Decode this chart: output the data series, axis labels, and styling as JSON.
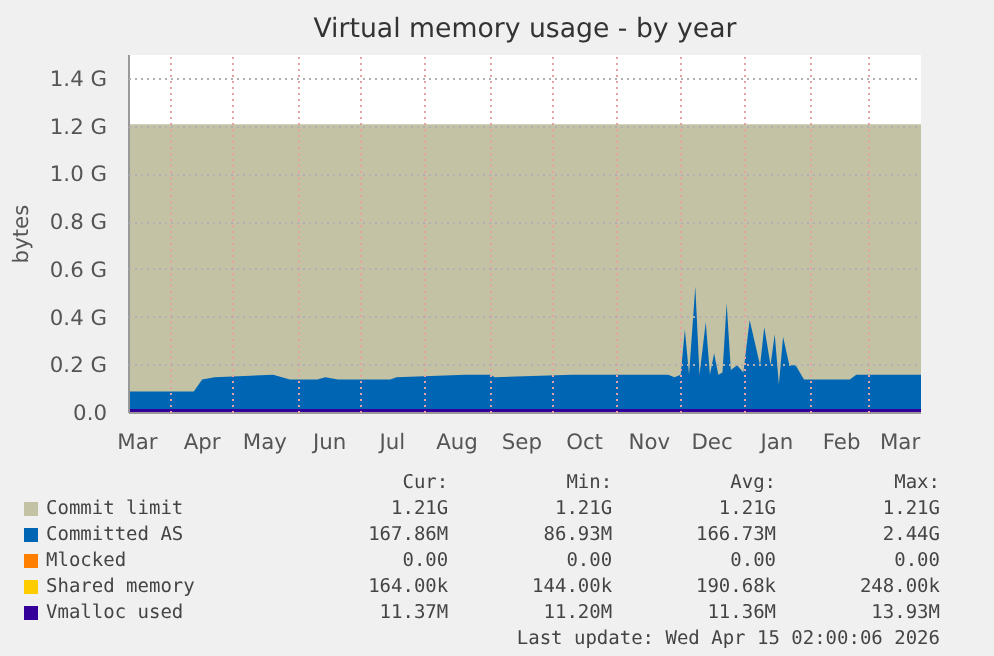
{
  "chart_data": {
    "type": "area",
    "title": "Virtual memory usage - by year",
    "ylabel": "bytes",
    "xlim": [
      "2025-03-12",
      "2026-03-26"
    ],
    "xticks": [
      {
        "value": "2025-04-01",
        "label": null
      },
      {
        "value": "2025-05-01",
        "label": null
      },
      {
        "value": "2025-06-01",
        "label": null
      },
      {
        "value": "2025-07-01",
        "label": null
      },
      {
        "value": "2025-08-01",
        "label": null
      },
      {
        "value": "2025-09-01",
        "label": null
      },
      {
        "value": "2025-10-01",
        "label": null
      },
      {
        "value": "2025-11-01",
        "label": null
      },
      {
        "value": "2025-12-01",
        "label": null
      },
      {
        "value": "2026-01-01",
        "label": null
      },
      {
        "value": "2026-02-01",
        "label": null
      },
      {
        "value": "2026-03-01",
        "label": null
      },
      {
        "value": "2025-03-16",
        "label": "Mar"
      },
      {
        "value": "2025-04-16",
        "label": "Apr"
      },
      {
        "value": "2025-05-16",
        "label": "May"
      },
      {
        "value": "2025-06-16",
        "label": "Jun"
      },
      {
        "value": "2025-07-16",
        "label": "Jul"
      },
      {
        "value": "2025-08-16",
        "label": "Aug"
      },
      {
        "value": "2025-09-16",
        "label": "Sep"
      },
      {
        "value": "2025-10-16",
        "label": "Oct"
      },
      {
        "value": "2025-11-16",
        "label": "Nov"
      },
      {
        "value": "2025-12-16",
        "label": "Dec"
      },
      {
        "value": "2026-01-16",
        "label": "Jan"
      },
      {
        "value": "2026-02-16",
        "label": "Feb"
      },
      {
        "value": "2026-03-16",
        "label": "Mar"
      }
    ],
    "ylim": [
      0,
      1.5
    ],
    "yticks": [
      {
        "value": 0,
        "label": "0.0"
      },
      {
        "value": 0.2,
        "label": "0.2 G"
      },
      {
        "value": 0.4,
        "label": "0.4 G"
      },
      {
        "value": 0.6,
        "label": "0.6 G"
      },
      {
        "value": 0.8,
        "label": "0.8 G"
      },
      {
        "value": 1.0,
        "label": "1.0 G"
      },
      {
        "value": 1.2,
        "label": "1.2 G"
      },
      {
        "value": 1.4,
        "label": "1.4 G"
      }
    ],
    "grid": true,
    "legend": "bottom",
    "series": [
      {
        "name": "Commit limit",
        "color": "#c4c2a4",
        "x": [
          "2025-03-12",
          "2026-03-26"
        ],
        "values": [
          1.21,
          1.21
        ]
      },
      {
        "name": "Committed AS",
        "color": "#0066b3",
        "x": [
          "2025-03-12",
          "2025-04-12",
          "2025-04-16",
          "2025-04-22",
          "2025-05-20",
          "2025-05-28",
          "2025-06-10",
          "2025-06-14",
          "2025-06-20",
          "2025-07-15",
          "2025-07-18",
          "2025-08-20",
          "2025-09-01",
          "2025-09-03",
          "2025-10-10",
          "2025-11-25",
          "2025-11-28",
          "2025-12-01",
          "2025-12-03",
          "2025-12-05",
          "2025-12-08",
          "2025-12-10",
          "2025-12-13",
          "2025-12-15",
          "2025-12-17",
          "2025-12-19",
          "2025-12-21",
          "2025-12-23",
          "2025-12-25",
          "2025-12-28",
          "2025-12-31",
          "2026-01-03",
          "2026-01-08",
          "2026-01-10",
          "2026-01-13",
          "2026-01-15",
          "2026-01-17",
          "2026-01-19",
          "2026-01-22",
          "2026-01-25",
          "2026-01-29",
          "2026-01-31",
          "2026-02-20",
          "2026-02-23",
          "2026-03-20",
          "2026-03-23",
          "2026-03-26"
        ],
        "values": [
          0.09,
          0.09,
          0.14,
          0.15,
          0.16,
          0.14,
          0.14,
          0.15,
          0.14,
          0.14,
          0.15,
          0.16,
          0.16,
          0.15,
          0.16,
          0.16,
          0.15,
          0.16,
          0.35,
          0.16,
          0.53,
          0.16,
          0.38,
          0.16,
          0.25,
          0.16,
          0.17,
          0.46,
          0.18,
          0.2,
          0.17,
          0.39,
          0.2,
          0.36,
          0.2,
          0.33,
          0.12,
          0.32,
          0.2,
          0.2,
          0.14,
          0.14,
          0.14,
          0.16,
          0.16,
          0.16,
          0.16
        ]
      },
      {
        "name": "Mlocked",
        "type": "line",
        "color": "#ff8000"
      },
      {
        "name": "Shared memory",
        "type": "line",
        "color": "#ffcc00"
      },
      {
        "name": "Vmalloc used",
        "type": "line",
        "color": "#330099",
        "x": [
          "2025-03-12",
          "2026-03-26"
        ],
        "values": [
          0.01,
          0.01
        ]
      }
    ],
    "annotations": [
      "Cur:",
      "Min:",
      "Avg:",
      "Max:",
      "1.21G",
      "1.21G",
      "1.21G",
      "1.21G",
      "167.86M",
      "86.93M",
      "166.73M",
      "2.44G",
      "0.00",
      "0.00",
      "0.00",
      "0.00",
      "164.00k",
      "144.00k",
      "190.68k",
      "248.00k",
      "11.37M",
      "11.20M",
      "11.36M",
      "13.93M",
      "Last update: Wed Apr 15 02:00:06 2026"
    ]
  }
}
